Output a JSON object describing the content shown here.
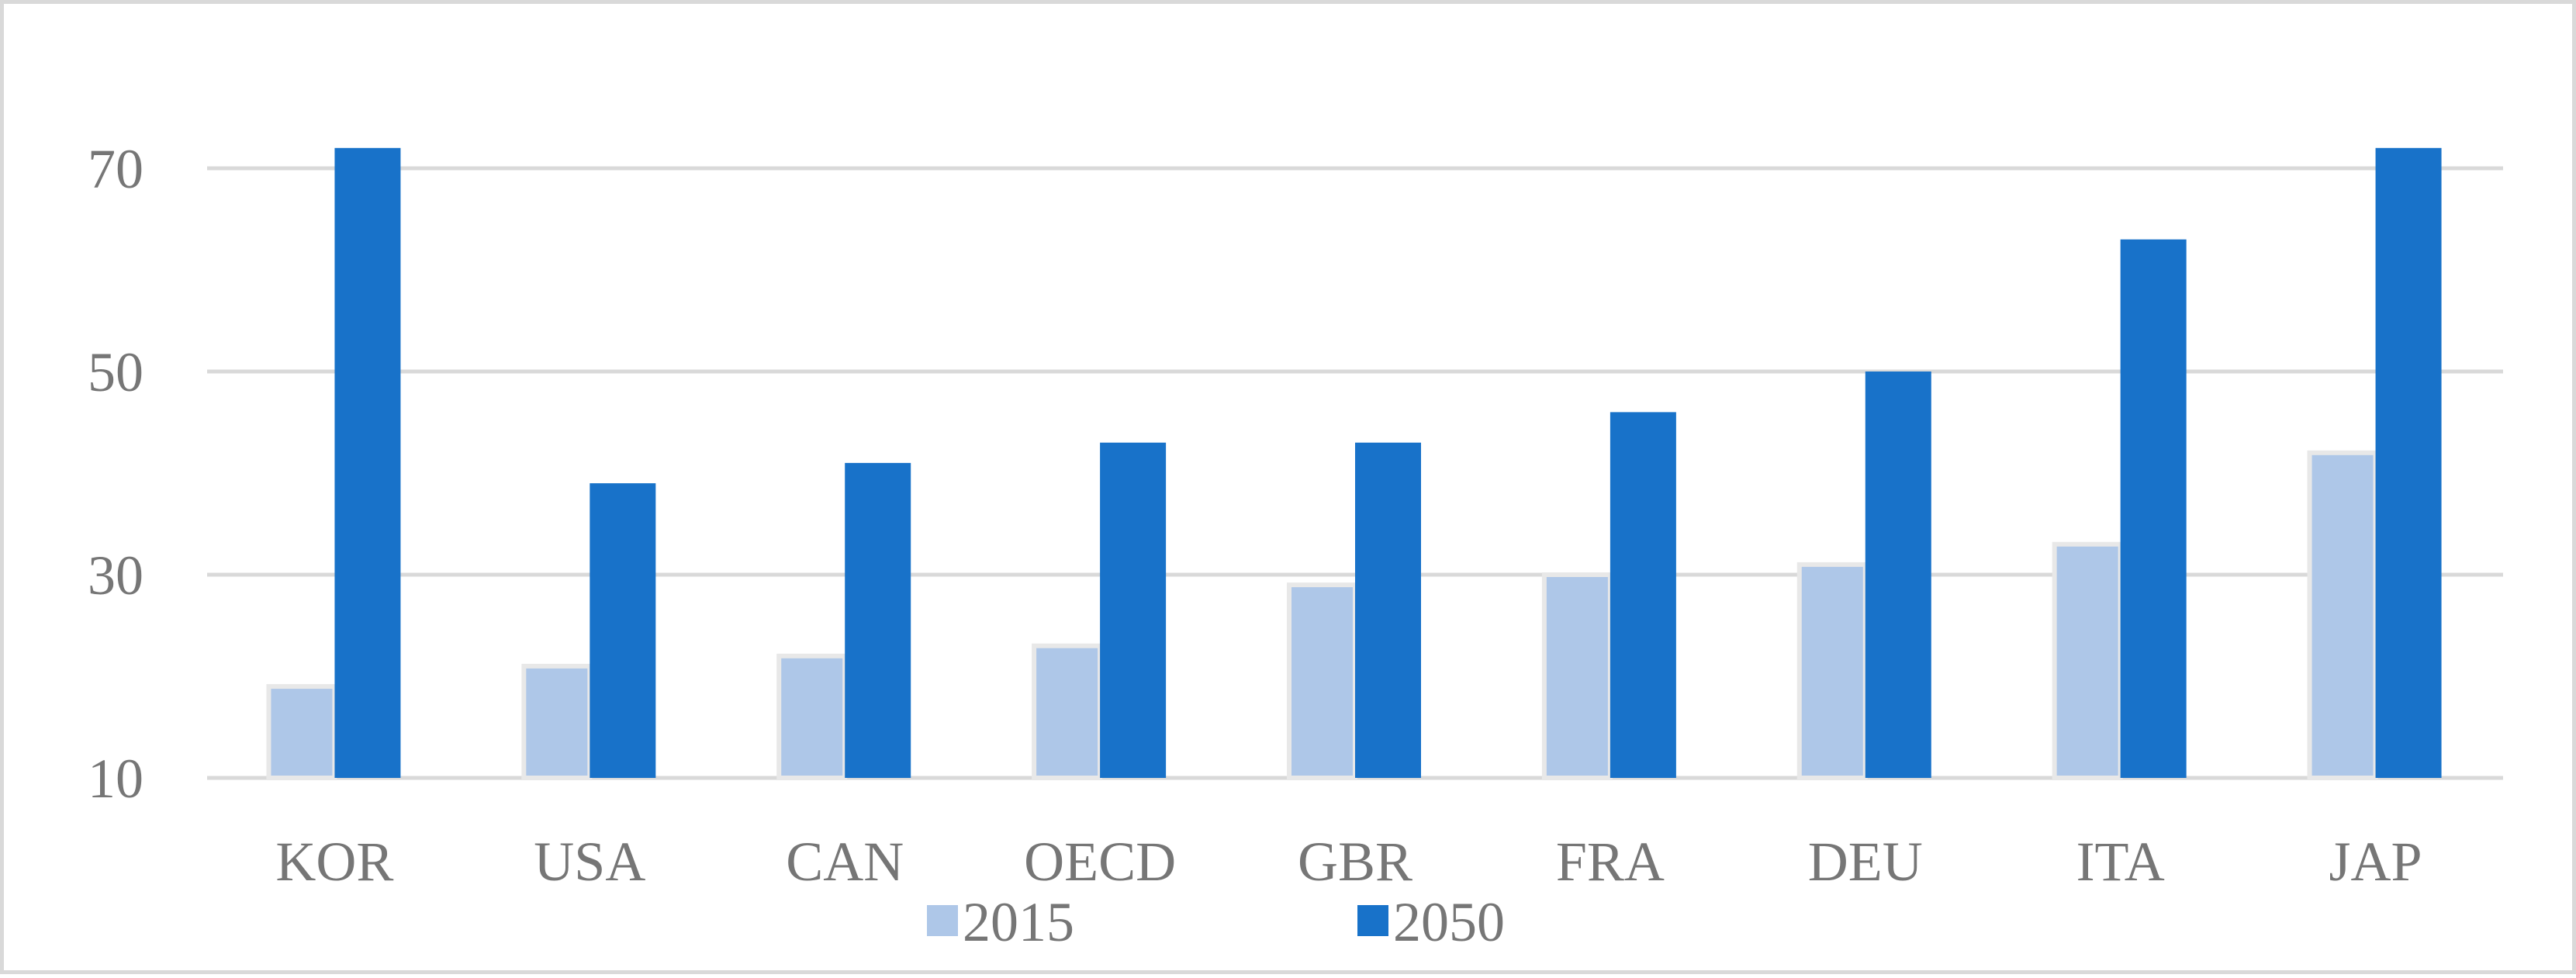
{
  "chart_data": {
    "type": "bar",
    "categories": [
      "KOR",
      "USA",
      "CAN",
      "OECD",
      "GBR",
      "FRA",
      "DEU",
      "ITA",
      "JAP"
    ],
    "series": [
      {
        "name": "2015",
        "color": "#aec7e8",
        "values": [
          19,
          21,
          22,
          23,
          29,
          30,
          31,
          33,
          42
        ]
      },
      {
        "name": "2050",
        "color": "#1872c9",
        "values": [
          72,
          39,
          41,
          43,
          43,
          46,
          50,
          63,
          72
        ]
      }
    ],
    "yticks": [
      10,
      30,
      50,
      70
    ],
    "ylim": [
      10,
      70
    ],
    "grid": true,
    "legend": "bottom-center",
    "title": "",
    "xlabel": "",
    "ylabel": ""
  }
}
